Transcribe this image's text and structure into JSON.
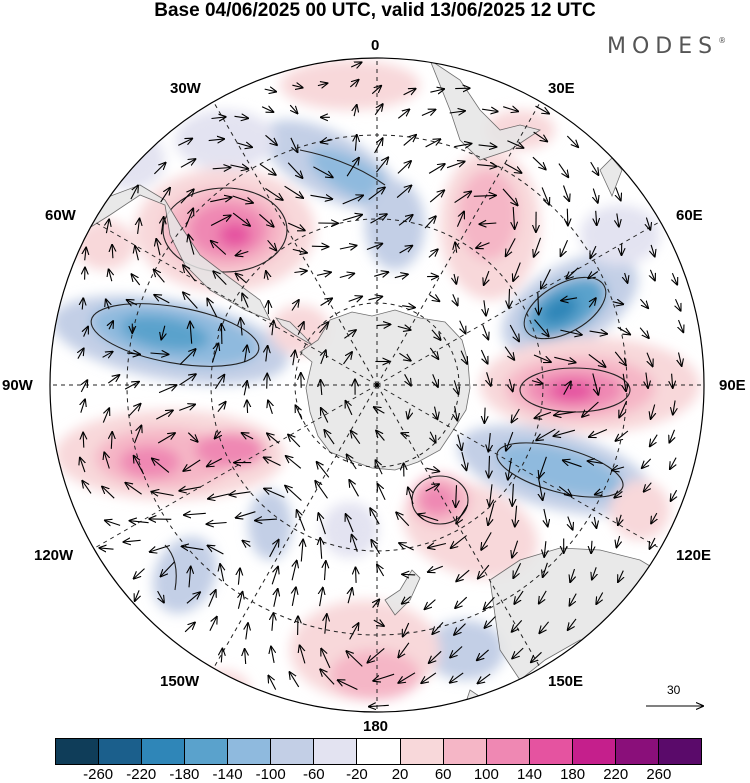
{
  "title": "Base 04/06/2025 00 UTC, valid 13/06/2025 12 UTC",
  "brand": "MODES",
  "brand_mark": "®",
  "longitude_labels": [
    "0",
    "30E",
    "60E",
    "90E",
    "120E",
    "150E",
    "180",
    "150W",
    "120W",
    "90W",
    "60W",
    "30W"
  ],
  "vector_reference": {
    "label": "30",
    "value": 30
  },
  "colorbar": {
    "tick_labels": [
      "-260",
      "-220",
      "-180",
      "-140",
      "-100",
      "-60",
      "-20",
      "20",
      "60",
      "100",
      "140",
      "180",
      "220",
      "260"
    ],
    "colors": [
      "#0f3d59",
      "#1b5f8c",
      "#2f86b8",
      "#5aa2cc",
      "#8fbade",
      "#c3cfe6",
      "#e3e3f1",
      "#ffffff",
      "#f8d8da",
      "#f5b6c6",
      "#ef88b3",
      "#e553a0",
      "#c51f8c",
      "#8a0f7a",
      "#5a0a6a"
    ]
  },
  "map": {
    "projection": "south polar stereographic",
    "land_color": "#e6e6e6",
    "grid": "dashed"
  }
}
